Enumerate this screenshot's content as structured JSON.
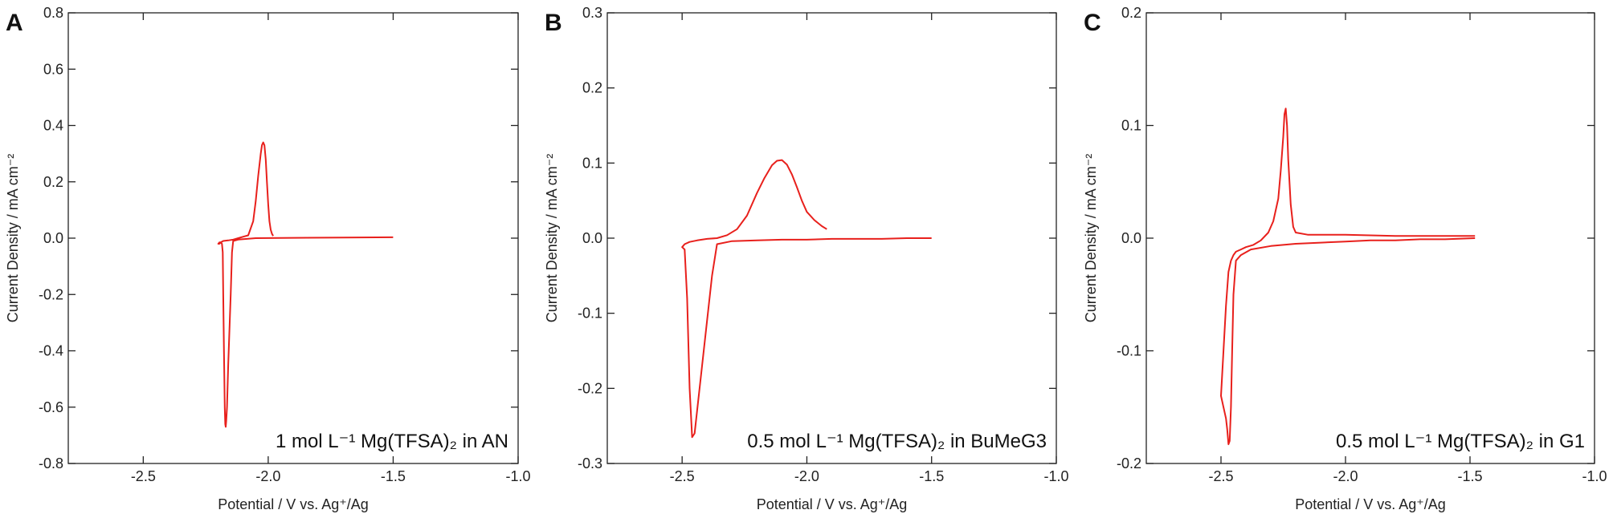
{
  "chart_data": [
    {
      "type": "line",
      "panel_label": "A",
      "annotation": "1 mol L⁻¹ Mg(TFSA)₂ in AN",
      "xlabel": "Potential / V vs. Ag⁺/Ag",
      "ylabel": "Current Density / mA cm⁻²",
      "xlim": [
        -2.8,
        -1.0
      ],
      "ylim": [
        -0.8,
        0.8
      ],
      "xticks": [
        -2.5,
        -2.0,
        -1.5,
        -1.0
      ],
      "xtick_labels": [
        "-2.5",
        "-2.0",
        "-1.5",
        "-1.0"
      ],
      "yticks": [
        -0.8,
        -0.6,
        -0.4,
        -0.2,
        0.0,
        0.2,
        0.4,
        0.6,
        0.8
      ],
      "ytick_labels": [
        "-0.8",
        "-0.6",
        "-0.4",
        "-0.2",
        "0.0",
        "0.2",
        "0.4",
        "0.6",
        "0.8"
      ],
      "grid": false,
      "color": "#e8201c",
      "series": [
        {
          "x": [
            -1.5,
            -1.7,
            -1.9,
            -2.05,
            -2.12,
            -2.14,
            -2.145,
            -2.15,
            -2.16,
            -2.165,
            -2.168,
            -2.17,
            -2.172,
            -2.174,
            -2.177,
            -2.18,
            -2.182,
            -2.185,
            -2.19,
            -2.195,
            -2.2,
            -2.195,
            -2.19,
            -2.18,
            -2.16,
            -2.14,
            -2.12,
            -2.1,
            -2.08,
            -2.06,
            -2.05,
            -2.04,
            -2.03,
            -2.025,
            -2.02,
            -2.015,
            -2.01,
            -2.005,
            -2.0,
            -1.995,
            -1.99,
            -1.985,
            -1.98
          ],
          "y": [
            0.003,
            0.002,
            0.001,
            0.0,
            -0.005,
            -0.01,
            -0.05,
            -0.2,
            -0.45,
            -0.6,
            -0.65,
            -0.67,
            -0.66,
            -0.6,
            -0.4,
            -0.2,
            -0.05,
            -0.02,
            -0.015,
            -0.015,
            -0.02,
            -0.02,
            -0.015,
            -0.01,
            -0.008,
            -0.005,
            0.0,
            0.005,
            0.01,
            0.06,
            0.13,
            0.22,
            0.3,
            0.33,
            0.34,
            0.33,
            0.28,
            0.2,
            0.12,
            0.06,
            0.03,
            0.015,
            0.008
          ]
        }
      ]
    },
    {
      "type": "line",
      "panel_label": "B",
      "annotation": "0.5 mol L⁻¹ Mg(TFSA)₂ in BuMeG3",
      "xlabel": "Potential / V vs. Ag⁺/Ag",
      "ylabel": "Current Density / mA cm⁻²",
      "xlim": [
        -2.8,
        -1.0
      ],
      "ylim": [
        -0.3,
        0.3
      ],
      "xticks": [
        -2.5,
        -2.0,
        -1.5,
        -1.0
      ],
      "xtick_labels": [
        "-2.5",
        "-2.0",
        "-1.5",
        "-1.0"
      ],
      "yticks": [
        -0.3,
        -0.2,
        -0.1,
        0.0,
        0.1,
        0.2,
        0.3
      ],
      "ytick_labels": [
        "-0.3",
        "-0.2",
        "-0.1",
        "0.0",
        "0.1",
        "0.2",
        "0.3"
      ],
      "grid": false,
      "color": "#e8201c",
      "series": [
        {
          "x": [
            -1.5,
            -1.6,
            -1.7,
            -1.8,
            -1.9,
            -2.0,
            -2.1,
            -2.2,
            -2.3,
            -2.36,
            -2.38,
            -2.4,
            -2.42,
            -2.44,
            -2.45,
            -2.46,
            -2.47,
            -2.48,
            -2.49,
            -2.5,
            -2.49,
            -2.47,
            -2.44,
            -2.4,
            -2.36,
            -2.32,
            -2.28,
            -2.24,
            -2.2,
            -2.17,
            -2.14,
            -2.12,
            -2.1,
            -2.08,
            -2.06,
            -2.04,
            -2.02,
            -2.0,
            -1.97,
            -1.94,
            -1.92
          ],
          "y": [
            0.0,
            0.0,
            -0.001,
            -0.001,
            -0.001,
            -0.002,
            -0.002,
            -0.003,
            -0.004,
            -0.008,
            -0.05,
            -0.11,
            -0.17,
            -0.23,
            -0.26,
            -0.265,
            -0.2,
            -0.08,
            -0.015,
            -0.012,
            -0.008,
            -0.005,
            -0.003,
            -0.001,
            0.0,
            0.004,
            0.012,
            0.03,
            0.06,
            0.08,
            0.097,
            0.103,
            0.104,
            0.098,
            0.085,
            0.068,
            0.05,
            0.035,
            0.024,
            0.016,
            0.012
          ]
        }
      ]
    },
    {
      "type": "line",
      "panel_label": "C",
      "annotation": "0.5 mol L⁻¹ Mg(TFSA)₂ in G1",
      "xlabel": "Potential / V vs. Ag⁺/Ag",
      "ylabel": "Current Density / mA cm⁻²",
      "xlim": [
        -2.8,
        -1.0
      ],
      "ylim": [
        -0.2,
        0.2
      ],
      "xticks": [
        -2.5,
        -2.0,
        -1.5,
        -1.0
      ],
      "xtick_labels": [
        "-2.5",
        "-2.0",
        "-1.5",
        "-1.0"
      ],
      "yticks": [
        -0.2,
        -0.1,
        0.0,
        0.1,
        0.2
      ],
      "ytick_labels": [
        "-0.2",
        "-0.1",
        "0.0",
        "0.1",
        "0.2"
      ],
      "grid": false,
      "color": "#e8201c",
      "series": [
        {
          "x": [
            -1.48,
            -1.6,
            -1.7,
            -1.8,
            -1.9,
            -2.0,
            -2.1,
            -2.2,
            -2.3,
            -2.38,
            -2.42,
            -2.44,
            -2.45,
            -2.455,
            -2.46,
            -2.465,
            -2.47,
            -2.475,
            -2.48,
            -2.49,
            -2.5,
            -2.49,
            -2.48,
            -2.47,
            -2.46,
            -2.45,
            -2.44,
            -2.42,
            -2.4,
            -2.37,
            -2.34,
            -2.31,
            -2.29,
            -2.27,
            -2.26,
            -2.25,
            -2.245,
            -2.24,
            -2.235,
            -2.23,
            -2.22,
            -2.21,
            -2.2,
            -2.15,
            -2.0,
            -1.8,
            -1.6,
            -1.48
          ],
          "y": [
            0.0,
            -0.001,
            -0.001,
            -0.002,
            -0.002,
            -0.003,
            -0.004,
            -0.005,
            -0.007,
            -0.01,
            -0.015,
            -0.02,
            -0.05,
            -0.1,
            -0.15,
            -0.18,
            -0.183,
            -0.17,
            -0.16,
            -0.15,
            -0.14,
            -0.1,
            -0.06,
            -0.03,
            -0.02,
            -0.015,
            -0.012,
            -0.01,
            -0.008,
            -0.006,
            -0.002,
            0.005,
            0.015,
            0.035,
            0.06,
            0.09,
            0.11,
            0.115,
            0.1,
            0.07,
            0.03,
            0.01,
            0.005,
            0.003,
            0.003,
            0.002,
            0.002,
            0.002
          ]
        }
      ]
    }
  ]
}
